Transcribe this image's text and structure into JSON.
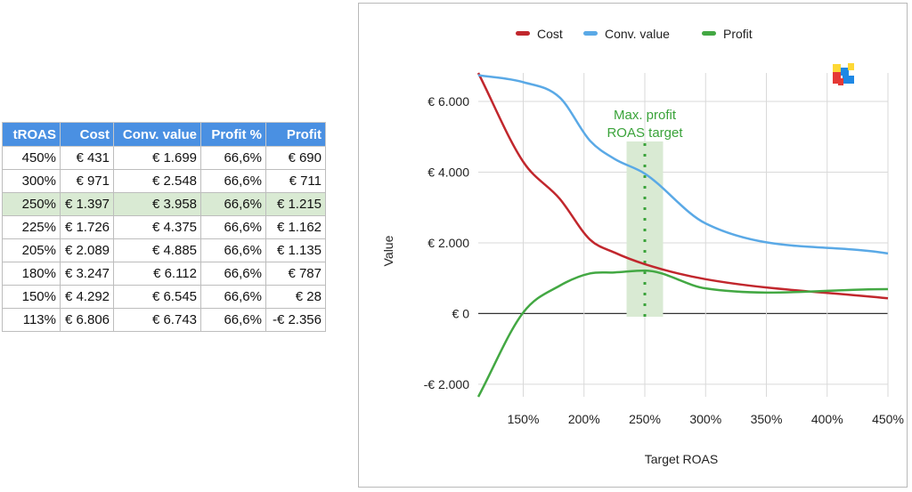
{
  "table": {
    "headers": [
      "tROAS",
      "Cost",
      "Conv. value",
      "Profit %",
      "Profit"
    ],
    "highlight_row": 2,
    "highlight_color": "#d9ead3",
    "header_color": "#4a90e2",
    "rows": [
      [
        "450%",
        "€ 431",
        "€ 1.699",
        "66,6%",
        "€ 690"
      ],
      [
        "300%",
        "€ 971",
        "€ 2.548",
        "66,6%",
        "€ 711"
      ],
      [
        "250%",
        "€ 1.397",
        "€ 3.958",
        "66,6%",
        "€ 1.215"
      ],
      [
        "225%",
        "€ 1.726",
        "€ 4.375",
        "66,6%",
        "€ 1.162"
      ],
      [
        "205%",
        "€ 2.089",
        "€ 4.885",
        "66,6%",
        "€ 1.135"
      ],
      [
        "180%",
        "€ 3.247",
        "€ 6.112",
        "66,6%",
        "€ 787"
      ],
      [
        "150%",
        "€ 4.292",
        "€ 6.545",
        "66,6%",
        "€ 28"
      ],
      [
        "113%",
        "€ 6.806",
        "€ 6.743",
        "66,6%",
        "-€ 2.356"
      ]
    ]
  },
  "chart_data": {
    "type": "line",
    "xlabel": "Target ROAS",
    "ylabel": "Value",
    "xlim": [
      113,
      450
    ],
    "ylim": [
      -2356,
      6806
    ],
    "x_ticks": [
      150,
      200,
      250,
      300,
      350,
      400,
      450
    ],
    "x_tick_labels": [
      "150%",
      "200%",
      "250%",
      "300%",
      "350%",
      "400%",
      "450%"
    ],
    "y_ticks": [
      -2000,
      0,
      2000,
      4000,
      6000
    ],
    "y_tick_labels": [
      "-€ 2.000",
      "€ 0",
      "€ 2.000",
      "€ 4.000",
      "€ 6.000"
    ],
    "legend_position": "top-center",
    "grid": true,
    "x": [
      113,
      150,
      180,
      205,
      225,
      250,
      300,
      450
    ],
    "series": [
      {
        "name": "Cost",
        "color": "#c1272d",
        "values": [
          6806,
          4292,
          3247,
          2089,
          1726,
          1397,
          971,
          431
        ]
      },
      {
        "name": "Conv. value",
        "color": "#5aa9e6",
        "values": [
          6743,
          6545,
          6112,
          4885,
          4375,
          3958,
          2548,
          1699
        ]
      },
      {
        "name": "Profit",
        "color": "#43a843",
        "values": [
          -2356,
          28,
          787,
          1135,
          1162,
          1215,
          711,
          690
        ]
      }
    ],
    "highlight_band": {
      "x_from": 235,
      "x_to": 265,
      "color": "#d9ead3"
    },
    "target_line_x": 250,
    "annotation": [
      "Max. profit",
      "ROAS target"
    ],
    "annotation_color": "#3aa33a"
  },
  "logo": {
    "icon": "cubes-logo-icon",
    "colors": [
      "#e53935",
      "#1e88e5",
      "#fdd835"
    ]
  }
}
